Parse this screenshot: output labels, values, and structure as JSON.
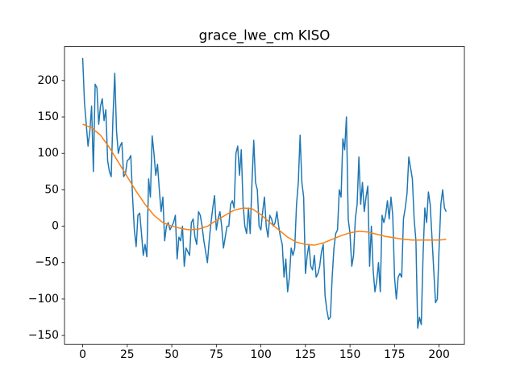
{
  "chart_data": {
    "type": "line",
    "title": "grace_lwe_cm KISO",
    "xlim": [
      -10.2,
      214.2
    ],
    "ylim": [
      -162.3,
      246.8
    ],
    "xticks": [
      0,
      25,
      50,
      75,
      100,
      125,
      150,
      175,
      200
    ],
    "yticks": [
      {
        "value": -150,
        "label": "−150"
      },
      {
        "value": -100,
        "label": "−100"
      },
      {
        "value": -50,
        "label": "−50"
      },
      0,
      50,
      100,
      150,
      200
    ],
    "series": [
      {
        "color": "#1f77b4",
        "x": [
          0,
          1,
          2,
          3,
          4,
          5,
          6,
          7,
          8,
          9,
          10,
          11,
          12,
          13,
          14,
          15,
          16,
          17,
          18,
          19,
          20,
          21,
          22,
          23,
          24,
          25,
          26,
          27,
          28,
          29,
          30,
          31,
          32,
          33,
          34,
          35,
          36,
          37,
          38,
          39,
          40,
          41,
          42,
          43,
          44,
          45,
          46,
          47,
          48,
          49,
          50,
          51,
          52,
          53,
          54,
          55,
          56,
          57,
          58,
          59,
          60,
          61,
          62,
          63,
          64,
          65,
          66,
          67,
          68,
          69,
          70,
          71,
          72,
          73,
          74,
          75,
          76,
          77,
          78,
          79,
          80,
          81,
          82,
          83,
          84,
          85,
          86,
          87,
          88,
          89,
          90,
          91,
          92,
          93,
          94,
          95,
          96,
          97,
          98,
          99,
          100,
          101,
          102,
          103,
          104,
          105,
          106,
          107,
          108,
          109,
          110,
          111,
          112,
          113,
          114,
          115,
          116,
          117,
          118,
          119,
          120,
          121,
          122,
          123,
          124,
          125,
          126,
          127,
          128,
          129,
          130,
          131,
          132,
          133,
          134,
          135,
          136,
          137,
          138,
          139,
          140,
          141,
          142,
          143,
          144,
          145,
          146,
          147,
          148,
          149,
          150,
          151,
          152,
          153,
          154,
          155,
          156,
          157,
          158,
          159,
          160,
          161,
          162,
          163,
          164,
          165,
          166,
          167,
          168,
          169,
          170,
          171,
          172,
          173,
          174,
          175,
          176,
          177,
          178,
          179,
          180,
          181,
          182,
          183,
          184,
          185,
          186,
          187,
          188,
          189,
          190,
          191,
          192,
          193,
          194,
          195,
          196,
          197,
          198,
          199,
          200,
          201,
          202,
          203,
          204
        ],
        "values": [
          231,
          170,
          140,
          110,
          130,
          165,
          75,
          195,
          190,
          140,
          165,
          175,
          145,
          160,
          90,
          75,
          68,
          150,
          210,
          130,
          100,
          110,
          115,
          68,
          72,
          90,
          92,
          97,
          40,
          -5,
          -28,
          15,
          18,
          -10,
          -40,
          -25,
          -42,
          65,
          40,
          124,
          100,
          70,
          85,
          50,
          20,
          40,
          -20,
          0,
          5,
          -5,
          0,
          5,
          15,
          -45,
          -15,
          -20,
          0,
          -55,
          -30,
          -35,
          -40,
          5,
          10,
          -15,
          -25,
          20,
          15,
          0,
          -20,
          -35,
          -50,
          -20,
          5,
          25,
          42,
          -5,
          10,
          20,
          0,
          -30,
          -15,
          0,
          0,
          30,
          35,
          25,
          100,
          110,
          70,
          105,
          30,
          0,
          -10,
          25,
          -10,
          60,
          118,
          60,
          50,
          0,
          -5,
          20,
          40,
          0,
          -15,
          15,
          10,
          0,
          5,
          20,
          0,
          -15,
          -25,
          -70,
          -45,
          -90,
          -70,
          -30,
          -40,
          -30,
          30,
          60,
          125,
          60,
          40,
          -65,
          -40,
          -25,
          -55,
          -60,
          -40,
          -70,
          -65,
          -55,
          -35,
          -25,
          -95,
          -115,
          -128,
          -125,
          -70,
          -30,
          -10,
          -5,
          50,
          40,
          120,
          105,
          150,
          10,
          -10,
          -55,
          -40,
          10,
          30,
          95,
          30,
          60,
          20,
          40,
          55,
          -55,
          0,
          -60,
          -90,
          -75,
          -50,
          -90,
          15,
          5,
          15,
          35,
          10,
          40,
          15,
          -70,
          -100,
          -70,
          -65,
          -70,
          10,
          25,
          45,
          95,
          80,
          65,
          10,
          -20,
          -140,
          -125,
          -135,
          -40,
          25,
          5,
          47,
          30,
          -15,
          -60,
          -105,
          -100,
          -30,
          30,
          50,
          25,
          20
        ]
      },
      {
        "color": "#ff7f0e",
        "x": [
          0,
          5,
          10,
          15,
          20,
          25,
          30,
          35,
          40,
          45,
          50,
          55,
          60,
          65,
          70,
          75,
          80,
          85,
          90,
          95,
          100,
          105,
          110,
          115,
          120,
          125,
          130,
          135,
          140,
          145,
          150,
          155,
          160,
          165,
          170,
          175,
          180,
          185,
          190,
          195,
          200,
          204
        ],
        "values": [
          140,
          135,
          125,
          108,
          88,
          68,
          48,
          30,
          15,
          5,
          0,
          -3,
          -5,
          -4,
          0,
          8,
          15,
          22,
          25,
          24,
          16,
          5,
          -5,
          -15,
          -22,
          -25,
          -26,
          -23,
          -18,
          -13,
          -9,
          -7,
          -8,
          -11,
          -14,
          -16,
          -18,
          -19,
          -19,
          -19,
          -19,
          -18
        ]
      }
    ]
  }
}
